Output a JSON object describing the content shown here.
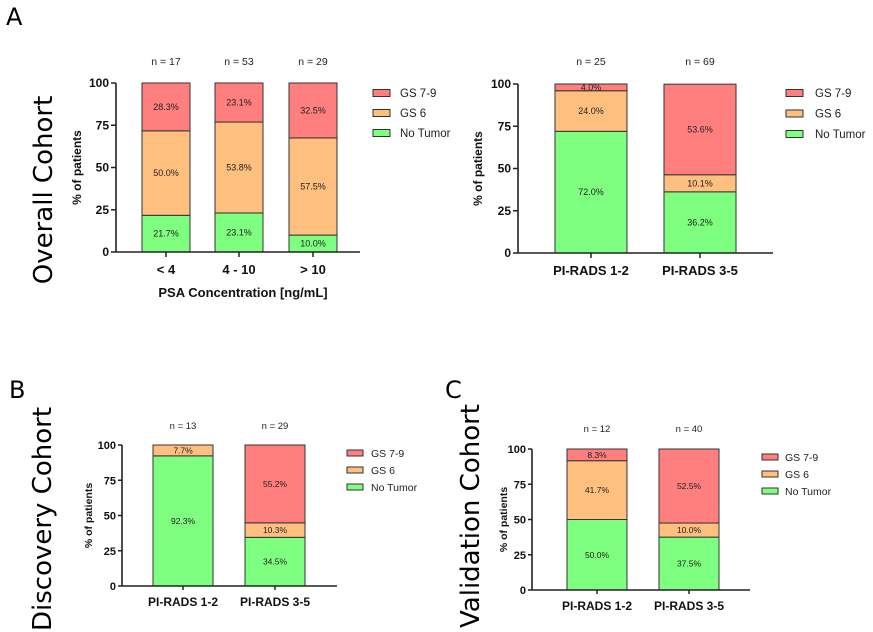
{
  "figure": {
    "panel_letters": [
      "A",
      "B",
      "C"
    ],
    "cohort_labels": [
      "Overall Cohort",
      "Discovery Cohort",
      "Validation Cohort"
    ]
  },
  "colors": {
    "GS 7-9": "#FF7F7F",
    "GS 6": "#FFBF7F",
    "No Tumor": "#7FFF7F",
    "outline": "#333333"
  },
  "chart_data": [
    {
      "id": "overall-psa",
      "type": "bar",
      "stacked": true,
      "title": "",
      "xlabel": "PSA Concentration [ng/mL]",
      "ylabel": "% of patients",
      "ylim": [
        0,
        100
      ],
      "yticks": [
        0,
        25,
        50,
        75,
        100
      ],
      "categories": [
        "< 4",
        "4 - 10",
        "> 10"
      ],
      "n_labels": [
        "n = 17",
        "n = 53",
        "n = 29"
      ],
      "series": [
        {
          "name": "No Tumor",
          "values": [
            21.7,
            23.1,
            10.0
          ],
          "labels": [
            "21.7%",
            "23.1%",
            "10.0%"
          ]
        },
        {
          "name": "GS 6",
          "values": [
            50.0,
            53.8,
            57.5
          ],
          "labels": [
            "50.0%",
            "53.8%",
            "57.5%"
          ]
        },
        {
          "name": "GS 7-9",
          "values": [
            28.3,
            23.1,
            32.5
          ],
          "labels": [
            "28.3%",
            "23.1%",
            "32.5%"
          ]
        }
      ],
      "legend": {
        "position": "right",
        "entries": [
          "GS 7-9",
          "GS 6",
          "No Tumor"
        ]
      },
      "grid": false
    },
    {
      "id": "overall-pirads",
      "type": "bar",
      "stacked": true,
      "title": "",
      "xlabel": "",
      "ylabel": "% of patients",
      "ylim": [
        0,
        100
      ],
      "yticks": [
        0,
        25,
        50,
        75,
        100
      ],
      "categories": [
        "PI-RADS 1-2",
        "PI-RADS 3-5"
      ],
      "n_labels": [
        "n = 25",
        "n = 69"
      ],
      "series": [
        {
          "name": "No Tumor",
          "values": [
            72.0,
            36.2
          ],
          "labels": [
            "72.0%",
            "36.2%"
          ]
        },
        {
          "name": "GS 6",
          "values": [
            24.0,
            10.1
          ],
          "labels": [
            "24.0%",
            "10.1%"
          ]
        },
        {
          "name": "GS 7-9",
          "values": [
            4.0,
            53.6
          ],
          "labels": [
            "4.0%",
            "53.6%"
          ]
        }
      ],
      "legend": {
        "position": "right",
        "entries": [
          "GS 7-9",
          "GS 6",
          "No Tumor"
        ]
      },
      "grid": false
    },
    {
      "id": "discovery-pirads",
      "type": "bar",
      "stacked": true,
      "title": "",
      "xlabel": "",
      "ylabel": "% of patients",
      "ylim": [
        0,
        100
      ],
      "yticks": [
        0,
        25,
        50,
        75,
        100
      ],
      "categories": [
        "PI-RADS 1-2",
        "PI-RADS 3-5"
      ],
      "n_labels": [
        "n = 13",
        "n = 29"
      ],
      "series": [
        {
          "name": "No Tumor",
          "values": [
            92.3,
            34.5
          ],
          "labels": [
            "92.3%",
            "34.5%"
          ]
        },
        {
          "name": "GS 6",
          "values": [
            7.7,
            10.3
          ],
          "labels": [
            "7.7%",
            "10.3%"
          ]
        },
        {
          "name": "GS 7-9",
          "values": [
            0.0,
            55.2
          ],
          "labels": [
            "",
            "55.2%"
          ]
        }
      ],
      "legend": {
        "position": "right",
        "entries": [
          "GS 7-9",
          "GS 6",
          "No Tumor"
        ]
      },
      "grid": false
    },
    {
      "id": "validation-pirads",
      "type": "bar",
      "stacked": true,
      "title": "",
      "xlabel": "",
      "ylabel": "% of patients",
      "ylim": [
        0,
        100
      ],
      "yticks": [
        0,
        25,
        50,
        75,
        100
      ],
      "categories": [
        "PI-RADS 1-2",
        "PI-RADS 3-5"
      ],
      "n_labels": [
        "n = 12",
        "n = 40"
      ],
      "series": [
        {
          "name": "No Tumor",
          "values": [
            50.0,
            37.5
          ],
          "labels": [
            "50.0%",
            "37.5%"
          ]
        },
        {
          "name": "GS 6",
          "values": [
            41.7,
            10.0
          ],
          "labels": [
            "41.7%",
            "10.0%"
          ]
        },
        {
          "name": "GS 7-9",
          "values": [
            8.3,
            52.5
          ],
          "labels": [
            "8.3%",
            "52.5%"
          ]
        }
      ],
      "legend": {
        "position": "right",
        "entries": [
          "GS 7-9",
          "GS 6",
          "No Tumor"
        ]
      },
      "grid": false
    }
  ]
}
